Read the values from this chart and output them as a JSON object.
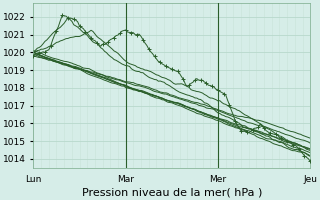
{
  "bg_color": "#d6ede8",
  "plot_bg_color": "#d6ede8",
  "grid_color_major": "#b8d8cc",
  "grid_color_minor": "#c8e4d8",
  "line_color": "#2a5e2a",
  "ylim": [
    1013.5,
    1022.8
  ],
  "yticks": [
    1014,
    1015,
    1016,
    1017,
    1018,
    1019,
    1020,
    1021,
    1022
  ],
  "xlabel": "Pression niveau de la mer( hPa )",
  "xlabel_fontsize": 8,
  "tick_fontsize": 6.5,
  "day_labels": [
    "Lun",
    "Mar",
    "Mer",
    "Jeu"
  ],
  "day_positions": [
    0,
    48,
    96,
    144
  ],
  "line_width": 0.7,
  "marker_size": 2.5
}
